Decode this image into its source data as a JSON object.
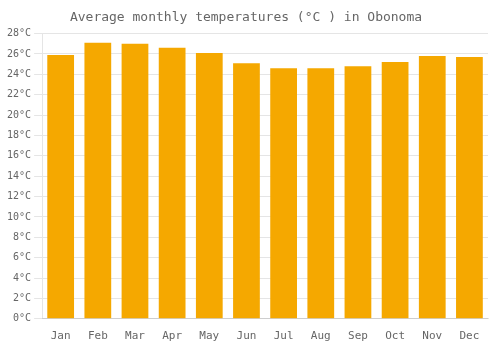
{
  "chart_data": {
    "type": "bar",
    "title": "Average monthly temperatures (°C ) in Obonoma",
    "categories": [
      "Jan",
      "Feb",
      "Mar",
      "Apr",
      "May",
      "Jun",
      "Jul",
      "Aug",
      "Sep",
      "Oct",
      "Nov",
      "Dec"
    ],
    "values": [
      25.9,
      27.1,
      27.0,
      26.6,
      26.1,
      25.1,
      24.6,
      24.6,
      24.8,
      25.2,
      25.8,
      25.7
    ],
    "color": "#F5A800",
    "ylim": [
      0,
      28
    ],
    "yticks": [
      {
        "value": 0,
        "label": "0°C"
      },
      {
        "value": 2,
        "label": "2°C"
      },
      {
        "value": 4,
        "label": "4°C"
      },
      {
        "value": 6,
        "label": "6°C"
      },
      {
        "value": 8,
        "label": "8°C"
      },
      {
        "value": 10,
        "label": "10°C"
      },
      {
        "value": 12,
        "label": "12°C"
      },
      {
        "value": 14,
        "label": "14°C"
      },
      {
        "value": 16,
        "label": "16°C"
      },
      {
        "value": 18,
        "label": "18°C"
      },
      {
        "value": 20,
        "label": "20°C"
      },
      {
        "value": 22,
        "label": "22°C"
      },
      {
        "value": 24,
        "label": "24°C"
      },
      {
        "value": 26,
        "label": "26°C"
      },
      {
        "value": 28,
        "label": "28°C"
      }
    ],
    "grid": true
  }
}
